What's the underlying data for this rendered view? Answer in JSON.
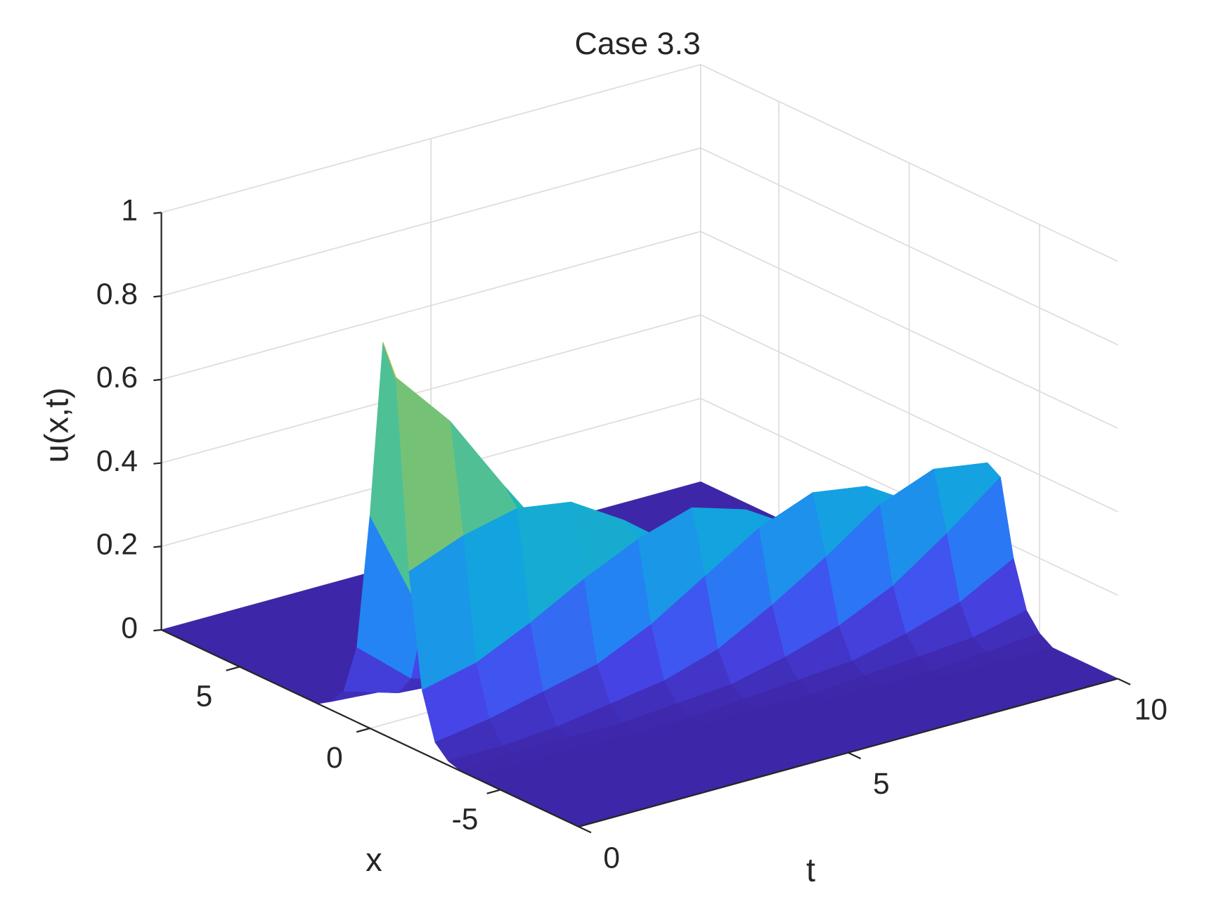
{
  "chart_data": {
    "type": "surface",
    "title": "Case 3.3",
    "xlabel": "x",
    "tlabel": "t",
    "zlabel": "u(x,t)",
    "colormap": "parula",
    "xlim": [
      -8,
      8
    ],
    "xticks": [
      -5,
      0,
      5
    ],
    "tlim": [
      0,
      10
    ],
    "tticks": [
      0,
      5,
      10
    ],
    "zlim": [
      0,
      1
    ],
    "zticks": [
      0,
      0.2,
      0.4,
      0.6,
      0.8,
      1
    ],
    "grid": true,
    "x": [
      -8,
      -7.5,
      -7,
      -6.5,
      -6,
      -5.5,
      -5,
      -4.5,
      -4,
      -3.5,
      -3,
      -2.5,
      -2,
      -1.5,
      -1,
      -0.5,
      0,
      0.5,
      1,
      1.5,
      2,
      2.5,
      3,
      3.5,
      4,
      4.5,
      5,
      5.5,
      6,
      6.5,
      7,
      7.5,
      8
    ],
    "t": [
      0,
      1,
      2,
      3,
      4,
      5,
      6,
      7,
      8,
      9,
      10
    ],
    "z": [
      [
        0,
        0,
        0,
        0,
        0,
        0,
        0,
        0,
        0,
        0,
        0.01,
        0.04,
        0.15,
        0.42,
        0.87,
        0.94,
        0.51,
        0.18,
        0.06,
        0.02,
        0,
        0,
        0,
        0,
        0,
        0,
        0,
        0,
        0,
        0,
        0,
        0,
        0
      ],
      [
        0,
        0,
        0,
        0,
        0,
        0,
        0,
        0,
        0,
        0.01,
        0.01,
        0.06,
        0.18,
        0.47,
        0.73,
        0.54,
        0.23,
        0.07,
        0.02,
        0.01,
        0,
        0,
        0,
        0,
        0,
        0,
        0,
        0,
        0,
        0,
        0,
        0,
        0
      ],
      [
        0,
        0,
        0,
        0,
        0,
        0,
        0,
        0,
        0,
        0.01,
        0.02,
        0.09,
        0.24,
        0.5,
        0.54,
        0.29,
        0.1,
        0.03,
        0.01,
        0,
        0,
        0,
        0,
        0,
        0,
        0,
        0,
        0,
        0,
        0,
        0,
        0,
        0
      ],
      [
        0,
        0,
        0,
        0,
        0,
        0,
        0,
        0,
        0,
        0.01,
        0.04,
        0.12,
        0.31,
        0.48,
        0.36,
        0.15,
        0.05,
        0.01,
        0,
        0,
        0,
        0,
        0,
        0,
        0,
        0,
        0,
        0,
        0,
        0,
        0,
        0,
        0
      ],
      [
        0,
        0,
        0,
        0,
        0,
        0,
        0,
        0,
        0,
        0.02,
        0.06,
        0.18,
        0.37,
        0.4,
        0.22,
        0.08,
        0.03,
        0.01,
        0,
        0,
        0,
        0,
        0,
        0,
        0,
        0,
        0,
        0,
        0,
        0,
        0,
        0,
        0
      ],
      [
        0,
        0,
        0,
        0,
        0,
        0,
        0,
        0,
        0.01,
        0.03,
        0.1,
        0.26,
        0.41,
        0.3,
        0.13,
        0.04,
        0.01,
        0,
        0,
        0,
        0,
        0,
        0,
        0,
        0,
        0,
        0,
        0,
        0,
        0,
        0,
        0,
        0
      ],
      [
        0,
        0,
        0,
        0,
        0,
        0,
        0,
        0,
        0.02,
        0.06,
        0.17,
        0.34,
        0.37,
        0.2,
        0.07,
        0.02,
        0.01,
        0,
        0,
        0,
        0,
        0,
        0,
        0,
        0,
        0,
        0,
        0,
        0,
        0,
        0,
        0,
        0
      ],
      [
        0,
        0,
        0,
        0,
        0,
        0,
        0,
        0.01,
        0.03,
        0.1,
        0.25,
        0.39,
        0.29,
        0.12,
        0.04,
        0.01,
        0,
        0,
        0,
        0,
        0,
        0,
        0,
        0,
        0,
        0,
        0,
        0,
        0,
        0,
        0,
        0,
        0
      ],
      [
        0,
        0,
        0,
        0,
        0,
        0,
        0,
        0.02,
        0.06,
        0.16,
        0.34,
        0.37,
        0.2,
        0.07,
        0.02,
        0.01,
        0,
        0,
        0,
        0,
        0,
        0,
        0,
        0,
        0,
        0,
        0,
        0,
        0,
        0,
        0,
        0,
        0
      ],
      [
        0,
        0,
        0,
        0,
        0,
        0,
        0.01,
        0.03,
        0.1,
        0.25,
        0.39,
        0.29,
        0.12,
        0.04,
        0.01,
        0,
        0,
        0,
        0,
        0,
        0,
        0,
        0,
        0,
        0,
        0,
        0,
        0,
        0,
        0,
        0,
        0,
        0
      ],
      [
        0,
        0,
        0,
        0,
        0,
        0,
        0.02,
        0.06,
        0.17,
        0.35,
        0.37,
        0.2,
        0.07,
        0.02,
        0.01,
        0,
        0,
        0,
        0,
        0,
        0,
        0,
        0,
        0,
        0,
        0,
        0,
        0,
        0,
        0,
        0,
        0,
        0
      ]
    ]
  }
}
